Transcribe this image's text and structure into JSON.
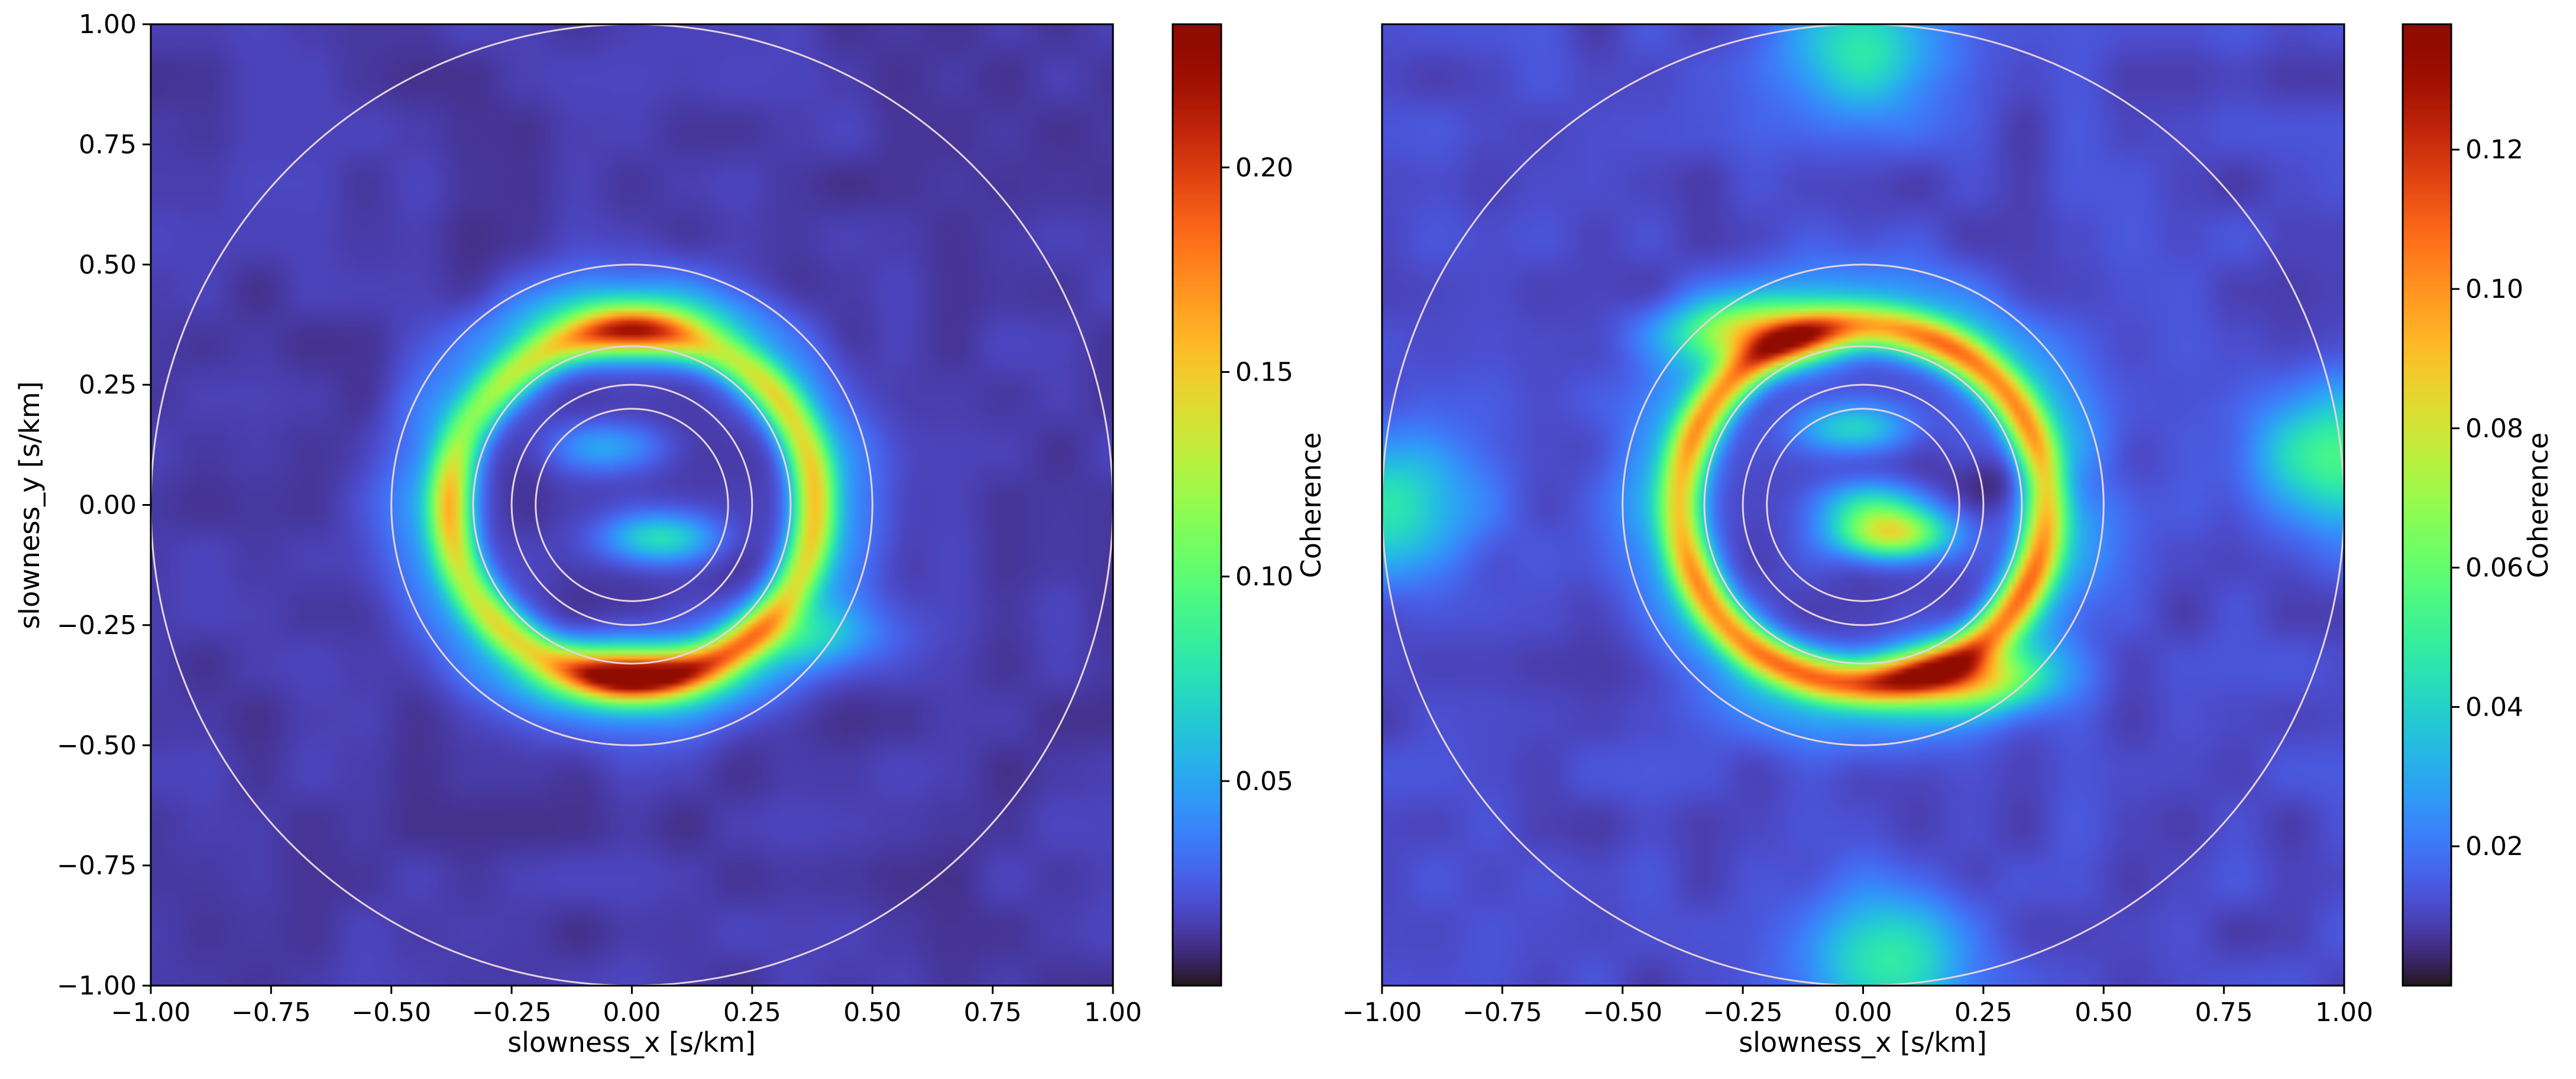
{
  "chart_data": [
    {
      "type": "heatmap",
      "xlabel": "slowness_x [s/km]",
      "ylabel": "slowness_y [s/km]",
      "xlim": [
        -1.0,
        1.0
      ],
      "ylim": [
        -1.0,
        1.0
      ],
      "xticks": [
        "−1.00",
        "−0.75",
        "−0.50",
        "−0.25",
        "0.00",
        "0.25",
        "0.50",
        "0.75",
        "1.00"
      ],
      "yticks": [
        "−1.00",
        "−0.75",
        "−0.50",
        "−0.25",
        "0.00",
        "0.25",
        "0.50",
        "0.75",
        "1.00"
      ],
      "colormap": "turbo",
      "colorbar": {
        "label": "Coherence",
        "range": [
          0.0,
          0.235
        ],
        "ticks": [
          "0.05",
          "0.10",
          "0.15",
          "0.20"
        ],
        "tick_values": [
          0.05,
          0.1,
          0.15,
          0.2
        ]
      },
      "circles_radii": [
        0.2,
        0.25,
        0.33,
        0.5,
        1.0
      ],
      "circle_color": "#e6d3dc",
      "features": {
        "background_level": 0.01,
        "ring": {
          "radius_x": 0.38,
          "radius_y": 0.36,
          "level": 0.11
        },
        "peaks": [
          {
            "x": 0.0,
            "y": -0.35,
            "value": 0.23
          },
          {
            "x": 0.0,
            "y": 0.37,
            "value": 0.19
          },
          {
            "x": 0.35,
            "y": -0.27,
            "value": 0.15
          }
        ],
        "inner_blobs": [
          {
            "x": -0.05,
            "y": 0.12,
            "value": 0.035
          },
          {
            "x": 0.06,
            "y": -0.07,
            "value": 0.06
          }
        ]
      }
    },
    {
      "type": "heatmap",
      "xlabel": "slowness_x [s/km]",
      "ylabel": "",
      "xlim": [
        -1.0,
        1.0
      ],
      "ylim": [
        -1.0,
        1.0
      ],
      "xticks": [
        "−1.00",
        "−0.75",
        "−0.50",
        "−0.25",
        "0.00",
        "0.25",
        "0.50",
        "0.75",
        "1.00"
      ],
      "yticks": [],
      "colormap": "turbo",
      "colorbar": {
        "label": "Coherence",
        "range": [
          0.0,
          0.138
        ],
        "ticks": [
          "0.02",
          "0.04",
          "0.06",
          "0.08",
          "0.10",
          "0.12"
        ],
        "tick_values": [
          0.02,
          0.04,
          0.06,
          0.08,
          0.1,
          0.12
        ]
      },
      "circles_radii": [
        0.2,
        0.25,
        0.33,
        0.5,
        1.0
      ],
      "circle_color": "#e6d3dc",
      "features": {
        "background_level": 0.008,
        "ring": {
          "radius_x": 0.38,
          "radius_y": 0.37,
          "level": 0.07
        },
        "peaks": [
          {
            "x": -0.22,
            "y": 0.36,
            "value": 0.13
          },
          {
            "x": 0.2,
            "y": -0.36,
            "value": 0.135
          },
          {
            "x": -0.32,
            "y": 0.05,
            "value": 0.07
          },
          {
            "x": 0.36,
            "y": 0.05,
            "value": 0.06
          }
        ],
        "inner_blobs": [
          {
            "x": 0.06,
            "y": -0.06,
            "value": 0.07
          },
          {
            "x": -0.02,
            "y": 0.16,
            "value": 0.03
          },
          {
            "x": 0.02,
            "y": 0.0,
            "value": 0.03
          }
        ],
        "edge_blobs": [
          {
            "x": 0.0,
            "y": 0.95,
            "value": 0.035
          },
          {
            "x": 0.05,
            "y": -0.95,
            "value": 0.035
          },
          {
            "x": -0.98,
            "y": 0.0,
            "value": 0.035
          },
          {
            "x": 0.98,
            "y": 0.1,
            "value": 0.04
          }
        ]
      }
    }
  ]
}
